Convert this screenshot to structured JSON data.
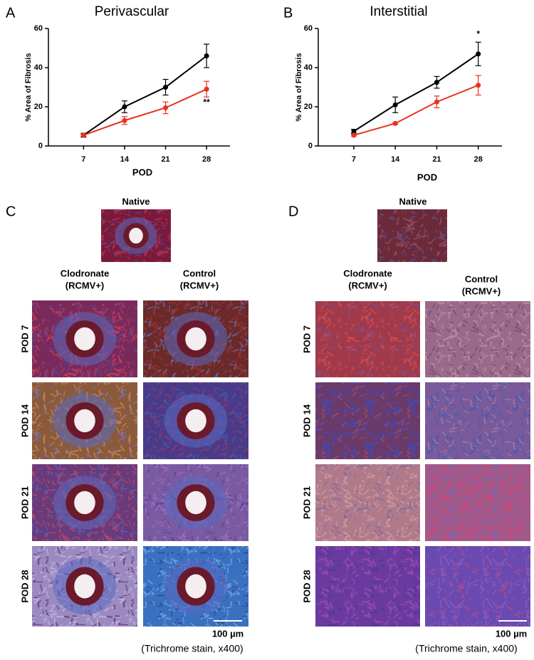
{
  "chart_data": [
    {
      "type": "line",
      "panel_label": "A",
      "title": "Perivascular",
      "x_label": "POD",
      "y_label": "% Area of Fibrosis",
      "x": [
        7,
        14,
        21,
        28
      ],
      "xlim": [
        1,
        32
      ],
      "xticks": [
        7,
        14,
        21,
        28
      ],
      "ylim": [
        0,
        60
      ],
      "yticks": [
        0,
        20,
        40,
        60
      ],
      "series": [
        {
          "color": "#000000",
          "values": [
            5.5,
            20,
            30,
            46
          ],
          "errors": [
            1,
            3,
            4,
            6
          ]
        },
        {
          "color": "#e8321e",
          "values": [
            5.5,
            13,
            19.5,
            29
          ],
          "errors": [
            0.5,
            2,
            3,
            4
          ]
        }
      ],
      "annotations": [
        {
          "text": "**",
          "x": 28,
          "y": 22
        }
      ]
    },
    {
      "type": "line",
      "panel_label": "B",
      "title": "Interstitial",
      "x_label": "POD",
      "y_label": "% Area of Fibrosis",
      "x": [
        7,
        14,
        21,
        28
      ],
      "xlim": [
        1,
        32
      ],
      "xticks": [
        7,
        14,
        21,
        28
      ],
      "ylim": [
        0,
        60
      ],
      "yticks": [
        0,
        20,
        40,
        60
      ],
      "series": [
        {
          "color": "#000000",
          "values": [
            7.5,
            21,
            32.5,
            47
          ],
          "errors": [
            1,
            4,
            3,
            6
          ]
        },
        {
          "color": "#e8321e",
          "values": [
            5.5,
            11.5,
            22.5,
            31
          ],
          "errors": [
            0.5,
            0.5,
            3,
            5
          ]
        }
      ],
      "annotations": [
        {
          "text": "*",
          "x": 28,
          "y": 57
        }
      ]
    }
  ],
  "panel_c": {
    "label": "C",
    "native": "Native",
    "columns": [
      [
        "Clodronate",
        "(RCMV+)"
      ],
      [
        "Control",
        "(RCMV+)"
      ]
    ],
    "rows": [
      "POD 7",
      "POD 14",
      "POD 21",
      "POD 28"
    ],
    "scale_bar": "100 µm",
    "stain": "(Trichrome stain,  x400)"
  },
  "panel_d": {
    "label": "D",
    "native": "Native",
    "columns": [
      [
        "Clodronate",
        "(RCMV+)"
      ],
      [
        "Control",
        "(RCMV+)"
      ]
    ],
    "rows": [
      "POD 7",
      "POD 14",
      "POD 21",
      "POD 28"
    ],
    "scale_bar": "100 µm",
    "stain": "(Trichrome stain,  x400)"
  }
}
